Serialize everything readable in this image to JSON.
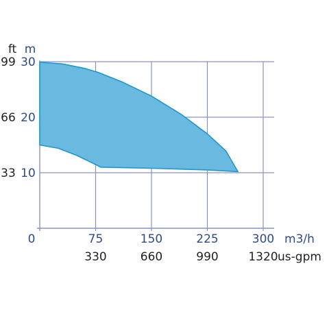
{
  "chart_data": {
    "type": "area",
    "x_unit": "m3/h",
    "x_ticks": [
      0,
      75,
      150,
      225,
      300
    ],
    "x2_unit": "us-gpm",
    "x2_ticks": [
      "330",
      "660",
      "990",
      "1320"
    ],
    "y_unit": "m",
    "y_ticks": [
      10,
      20,
      30
    ],
    "y2_unit": "ft",
    "y2_ticks": [
      "33",
      "66",
      "99"
    ],
    "xlim": [
      0,
      300
    ],
    "ylim": [
      0,
      30
    ],
    "grid": true,
    "series": [
      {
        "upper": [
          [
            0,
            29.9
          ],
          [
            30,
            29.6
          ],
          [
            60,
            28.8
          ],
          [
            80,
            28.0
          ],
          [
            110,
            26.4
          ],
          [
            150,
            23.8
          ],
          [
            190,
            20.5
          ],
          [
            225,
            17.0
          ],
          [
            250,
            13.9
          ],
          [
            266,
            10.2
          ]
        ],
        "lower": [
          [
            0,
            15.0
          ],
          [
            25,
            14.4
          ],
          [
            50,
            13.1
          ],
          [
            70,
            11.8
          ],
          [
            82,
            11.0
          ],
          [
            150,
            10.8
          ],
          [
            225,
            10.5
          ],
          [
            266,
            10.2
          ]
        ]
      }
    ],
    "colors": {
      "fill": "#69b9e0",
      "stroke": "#1e98cc",
      "grid": "#8a92c0",
      "label_blue": "#2e4a8a",
      "label_dark": "#222222"
    }
  }
}
